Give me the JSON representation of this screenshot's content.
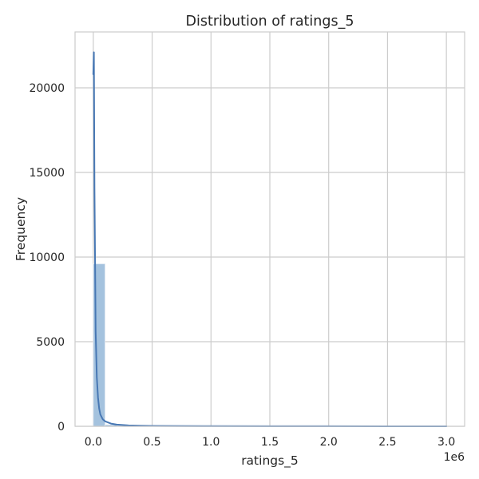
{
  "chart_data": {
    "type": "bar",
    "title": "Distribution of ratings_5",
    "xlabel": "ratings_5",
    "ylabel": "Frequency",
    "x_offset_label": "1e6",
    "x_scale": 1000000,
    "xlim": [
      -0.155,
      3.155
    ],
    "ylim": [
      0,
      23300
    ],
    "grid": true,
    "x_ticks": [
      0.0,
      0.5,
      1.0,
      1.5,
      2.0,
      2.5,
      3.0
    ],
    "x_tick_labels": [
      "0.0",
      "0.5",
      "1.0",
      "1.5",
      "2.0",
      "2.5",
      "3.0"
    ],
    "y_ticks": [
      0,
      5000,
      10000,
      15000,
      20000
    ],
    "y_tick_labels": [
      "0",
      "5000",
      "10000",
      "15000",
      "20000"
    ],
    "bins": {
      "start": 0.0,
      "width": 0.1,
      "counts": [
        9600,
        90,
        30,
        15,
        10,
        6,
        4,
        3,
        2,
        2,
        2,
        1,
        1,
        1,
        1,
        1,
        0,
        0,
        0,
        0,
        0,
        0,
        0,
        0,
        0,
        0,
        0,
        0,
        0,
        1
      ]
    },
    "kde": {
      "x": [
        0.0,
        0.005,
        0.01,
        0.02,
        0.03,
        0.04,
        0.05,
        0.06,
        0.08,
        0.1,
        0.15,
        0.2,
        0.3,
        0.4,
        0.5,
        0.7,
        1.0,
        1.5,
        2.0,
        2.5,
        3.0
      ],
      "y": [
        20800,
        22100,
        14000,
        5600,
        2900,
        1700,
        1050,
        700,
        420,
        300,
        160,
        100,
        55,
        35,
        25,
        15,
        10,
        6,
        4,
        3,
        2
      ]
    },
    "colors": {
      "bar_fill": "#a4c2de",
      "bar_stroke": "#e8eef5",
      "kde_line": "#4878b4",
      "grid": "#cccccc",
      "spine": "#cccccc",
      "text": "#262626"
    }
  }
}
